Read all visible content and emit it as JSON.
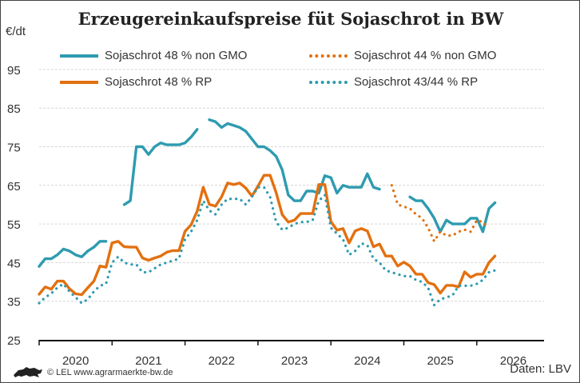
{
  "chart_data": {
    "type": "line",
    "title": "Erzeugereinkaufspreise füt Sojaschrot in BW",
    "ylabel": "€/dt",
    "xlabel": "",
    "ylim": [
      25,
      95
    ],
    "yticks": [
      25,
      35,
      45,
      55,
      65,
      75,
      85,
      95
    ],
    "xticks": [
      "2020",
      "2021",
      "2022",
      "2023",
      "2024",
      "2025",
      "2026"
    ],
    "grid": "horizontal dashed",
    "legend": "top",
    "x": [
      "2020-01",
      "2020-02",
      "2020-03",
      "2020-04",
      "2020-05",
      "2020-06",
      "2020-07",
      "2020-08",
      "2020-09",
      "2020-10",
      "2020-11",
      "2020-12",
      "2021-01",
      "2021-02",
      "2021-03",
      "2021-04",
      "2021-05",
      "2021-06",
      "2021-07",
      "2021-08",
      "2021-09",
      "2021-10",
      "2021-11",
      "2021-12",
      "2022-01",
      "2022-02",
      "2022-03",
      "2022-04",
      "2022-05",
      "2022-06",
      "2022-07",
      "2022-08",
      "2022-09",
      "2022-10",
      "2022-11",
      "2022-12",
      "2023-01",
      "2023-02",
      "2023-03",
      "2023-04",
      "2023-05",
      "2023-06",
      "2023-07",
      "2023-08",
      "2023-09",
      "2023-10",
      "2023-11",
      "2023-12",
      "2024-01",
      "2024-02",
      "2024-03",
      "2024-04",
      "2024-05",
      "2024-06",
      "2024-07",
      "2024-08",
      "2024-09",
      "2024-10",
      "2024-11",
      "2024-12",
      "2025-01",
      "2025-02",
      "2025-03",
      "2025-04",
      "2025-05",
      "2025-06",
      "2025-07",
      "2025-08",
      "2025-09",
      "2025-10",
      "2025-11",
      "2025-12",
      "2026-01",
      "2026-02",
      "2026-03",
      "2026-04"
    ],
    "series": [
      {
        "name": "Sojaschrot 48 % non GMO",
        "color": "#2e9bb0",
        "style": "solid",
        "values": [
          44,
          46,
          46,
          47,
          48.5,
          48,
          47,
          46.5,
          48,
          49,
          50.5,
          50.5,
          null,
          null,
          60,
          61,
          75,
          75,
          73,
          75,
          76,
          75.5,
          75.5,
          75.5,
          76,
          77.5,
          79.5,
          null,
          82,
          81.5,
          80,
          81,
          80.5,
          80,
          79,
          77,
          75,
          75,
          74,
          72.5,
          69,
          62.5,
          61,
          61,
          63.5,
          63.5,
          63,
          67.5,
          67,
          63,
          65,
          64.5,
          64.5,
          64.5,
          68,
          64.5,
          64,
          null,
          null,
          null,
          null,
          62,
          61,
          61,
          59,
          56.5,
          53,
          56,
          55,
          55,
          55,
          56.5,
          56.5,
          53,
          59,
          60.5
        ]
      },
      {
        "name": "Sojaschrot 44 % non GMO",
        "color": "#e3700f",
        "style": "dotted",
        "values": [
          null,
          null,
          null,
          null,
          null,
          null,
          null,
          null,
          null,
          null,
          null,
          null,
          null,
          null,
          null,
          null,
          null,
          null,
          null,
          null,
          null,
          null,
          null,
          null,
          null,
          null,
          null,
          null,
          null,
          null,
          null,
          null,
          null,
          null,
          null,
          null,
          null,
          null,
          null,
          null,
          null,
          null,
          null,
          null,
          null,
          null,
          null,
          null,
          null,
          null,
          null,
          null,
          null,
          null,
          null,
          null,
          null,
          null,
          65,
          60,
          59.5,
          59,
          57.5,
          56.5,
          54,
          50.5,
          53,
          52,
          52,
          53,
          53.5,
          53,
          56,
          55.5,
          54,
          null
        ]
      },
      {
        "name": "Sojaschrot 48 % RP",
        "color": "#e3700f",
        "style": "solid",
        "values": [
          36.8,
          38.7,
          38.1,
          40.2,
          40.2,
          38.2,
          36.9,
          36.7,
          38.5,
          40.2,
          44.1,
          43.8,
          50.1,
          50.5,
          49.1,
          49,
          49,
          46.2,
          45.6,
          46.2,
          46.7,
          47.7,
          48.1,
          48.1,
          53.1,
          54.8,
          58.3,
          64.5,
          60.1,
          59.6,
          62,
          65.6,
          65.2,
          65.6,
          64.3,
          62.2,
          64.8,
          67.6,
          67.6,
          63.1,
          57.4,
          55.5,
          56,
          57.7,
          57.7,
          57.7,
          65.2,
          65.2,
          55.6,
          53.4,
          53.8,
          50.1,
          53.2,
          53.8,
          53.2,
          49.1,
          49.8,
          46.7,
          46.7,
          44.1,
          45.1,
          44.1,
          42,
          42,
          39.8,
          39.3,
          37.1,
          39.1,
          39.1,
          38.7,
          42.6,
          41.2,
          42,
          42,
          45,
          46.7
        ]
      },
      {
        "name": "Sojaschrot 43/44 % RP",
        "color": "#2e9bb0",
        "style": "dotted",
        "values": [
          34.5,
          36,
          37,
          38.5,
          39.5,
          37.5,
          36,
          34.5,
          35.5,
          37.5,
          39,
          39.5,
          45,
          46.5,
          45,
          44.5,
          44.5,
          42.5,
          42.5,
          43.5,
          44.5,
          45,
          45.5,
          46,
          51,
          53,
          56,
          61,
          58.5,
          57.5,
          60,
          61.5,
          61.5,
          61.5,
          60,
          62,
          64.5,
          64.5,
          62,
          55.5,
          53.5,
          54,
          55,
          55.5,
          55.5,
          56,
          61,
          62.5,
          54,
          52.5,
          51,
          47,
          48,
          50,
          49.5,
          46,
          45,
          43,
          42.5,
          42,
          41.5,
          41.5,
          40.5,
          40,
          38.5,
          34,
          35.5,
          36,
          36.5,
          39,
          39,
          39,
          39.5,
          40.5,
          42.5,
          43
        ]
      }
    ]
  },
  "footer": {
    "credit": "© LEL www.agrarmaerkte-bw.de",
    "source": "Daten: LBV",
    "logo": "Baden-Württemberg lion logo"
  }
}
